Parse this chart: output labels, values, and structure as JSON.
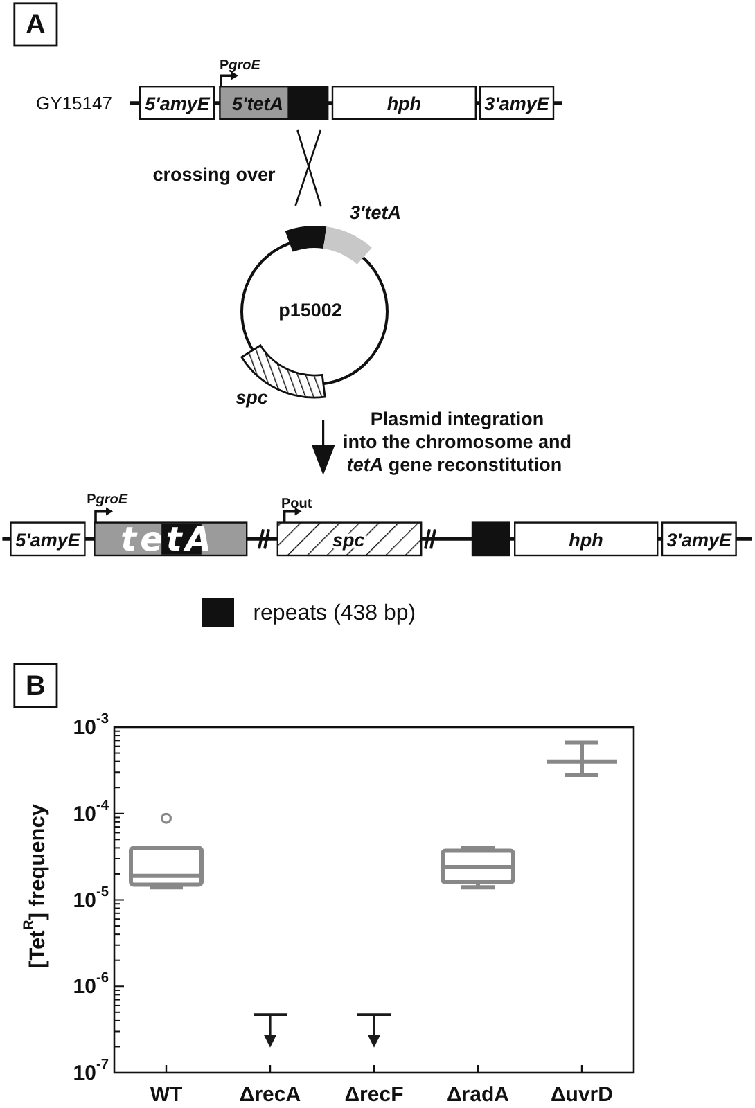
{
  "chart_data": [
    {
      "type": "other",
      "title": "A",
      "annotations": [
        "GY15147",
        "PgroE",
        "5'amyE",
        "5'tetA",
        "hph",
        "3'amyE",
        "crossing over",
        "3'tetA",
        "p15002",
        "spc",
        "Plasmid integration",
        "into the chromosome and",
        "tetA gene reconstitution",
        "PgroE",
        "5'amyE",
        "tetA",
        "Pout",
        "spc",
        "hph",
        "3'amyE",
        "repeats (438 bp)"
      ]
    },
    {
      "type": "box",
      "title": "B",
      "ylabel": "[Tet$^{R}$] frequency",
      "categories": [
        "WT",
        "ΔrecA",
        "ΔrecF",
        "ΔradA",
        "ΔuvrD"
      ],
      "log": true,
      "ylim": [
        1e-07,
        0.001
      ],
      "yticks": [
        {
          "value": 1e-07,
          "label": "10$^{-7}$"
        },
        {
          "value": 2e-07,
          "label": null
        },
        {
          "value": 3e-07,
          "label": null
        },
        {
          "value": 4e-07,
          "label": null
        },
        {
          "value": 5e-07,
          "label": null
        },
        {
          "value": 6e-07,
          "label": null
        },
        {
          "value": 7e-07,
          "label": null
        },
        {
          "value": 8e-07,
          "label": null
        },
        {
          "value": 9e-07,
          "label": null
        },
        {
          "value": 1e-06,
          "label": "10$^{-6}$"
        },
        {
          "value": 2e-06,
          "label": null
        },
        {
          "value": 3e-06,
          "label": null
        },
        {
          "value": 4e-06,
          "label": null
        },
        {
          "value": 5e-06,
          "label": null
        },
        {
          "value": 6e-06,
          "label": null
        },
        {
          "value": 7e-06,
          "label": null
        },
        {
          "value": 8e-06,
          "label": null
        },
        {
          "value": 9e-06,
          "label": null
        },
        {
          "value": 1e-05,
          "label": "10$^{-5}$"
        },
        {
          "value": 2e-05,
          "label": null
        },
        {
          "value": 3e-05,
          "label": null
        },
        {
          "value": 4e-05,
          "label": null
        },
        {
          "value": 5e-05,
          "label": null
        },
        {
          "value": 6e-05,
          "label": null
        },
        {
          "value": 7e-05,
          "label": null
        },
        {
          "value": 8e-05,
          "label": null
        },
        {
          "value": 9e-05,
          "label": null
        },
        {
          "value": 0.0001,
          "label": "10$^{-4}$"
        },
        {
          "value": 0.0002,
          "label": null
        },
        {
          "value": 0.0003,
          "label": null
        },
        {
          "value": 0.0004,
          "label": null
        },
        {
          "value": 0.0005,
          "label": null
        },
        {
          "value": 0.0006,
          "label": null
        },
        {
          "value": 0.0007,
          "label": null
        },
        {
          "value": 0.0008,
          "label": null
        },
        {
          "value": 0.0009,
          "label": null
        },
        {
          "value": 0.001,
          "label": "10$^{-3}$"
        }
      ],
      "series": [
        {
          "type": "box",
          "color": "#888888",
          "boxes": [
            {
              "low": 1.4e-05,
              "q1": 1.5e-05,
              "median": 1.9e-05,
              "q3": 4e-05,
              "high": 4e-05,
              "outliers": [
                8.8e-05
              ]
            },
            null,
            null,
            {
              "low": 1.4e-05,
              "q1": 1.6e-05,
              "median": 2.4e-05,
              "q3": 3.7e-05,
              "high": 4e-05
            },
            {
              "low": 0.00028,
              "q1": 0.0004,
              "median": 0.0004,
              "q3": 0.0004,
              "high": 0.00066
            }
          ]
        },
        {
          "type": "scatter",
          "color": "#1a1a1a",
          "marker": "triangle",
          "values": [
            null,
            2.3e-07,
            2.3e-07,
            null,
            null
          ],
          "errors": [
            null,
            [
              2.3e-07,
              4.7e-07
            ],
            [
              2.3e-07,
              4.7e-07
            ],
            null,
            null
          ]
        }
      ]
    }
  ]
}
